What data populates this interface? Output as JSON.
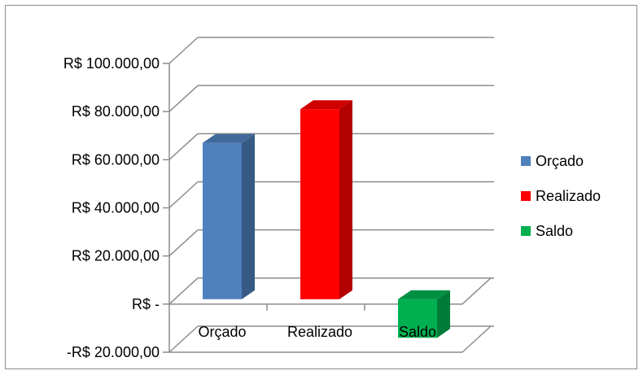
{
  "chart_data": {
    "type": "bar",
    "title": "",
    "xlabel": "",
    "ylabel": "",
    "categories": [
      "Orçado",
      "Realizado",
      "Saldo"
    ],
    "series": [
      {
        "name": "Orçado",
        "values": [
          67000,
          null,
          null
        ],
        "color": "#4F81BD"
      },
      {
        "name": "Realizado",
        "values": [
          null,
          81000,
          null
        ],
        "color": "#FF0000"
      },
      {
        "name": "Saldo",
        "values": [
          null,
          null,
          -14000
        ],
        "color": "#00B050"
      }
    ],
    "ylim": [
      -20000,
      100000
    ],
    "yticks": [
      -20000,
      0,
      20000,
      40000,
      60000,
      80000,
      100000
    ],
    "ytick_labels": [
      "-R$ 20.000,00",
      "R$ -",
      "R$ 20.000,00",
      "R$ 40.000,00",
      "R$ 60.000,00",
      "R$ 80.000,00",
      "R$ 100.000,00"
    ],
    "grid": true,
    "three_d": true,
    "legend_position": "right",
    "legend": [
      "Orçado",
      "Realizado",
      "Saldo"
    ]
  }
}
